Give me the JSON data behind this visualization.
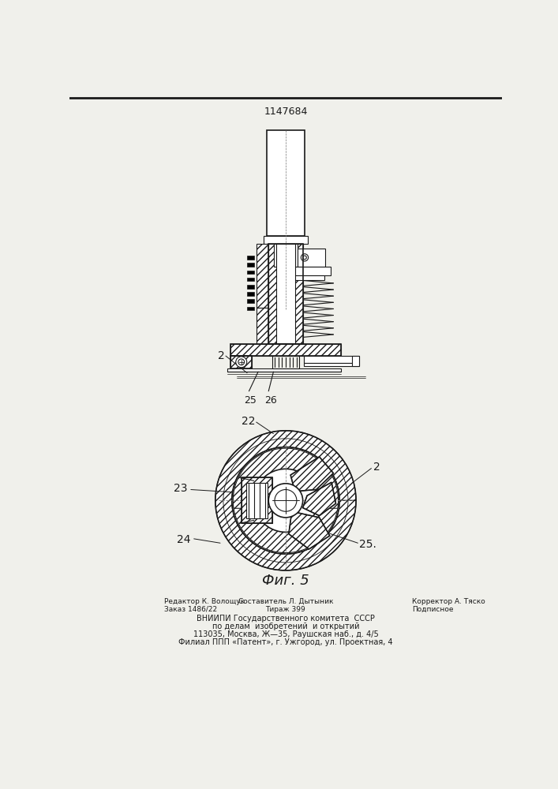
{
  "patent_number": "1147684",
  "fig_label": "Фиг. 5",
  "labels": {
    "2_top": "2",
    "25": "25",
    "26": "26",
    "22": "22",
    "23": "23",
    "24": "24",
    "2_bottom": "2",
    "25b": "25."
  },
  "footer_lines": [
    "Редактор К. Волощук",
    "Составитель Л. Дытыник",
    "Корректор А. Тяско",
    "Заказ 1486/22",
    "Тираж 399",
    "Подписное",
    "ВНИИПИ Государственного комитета  СССР",
    "по делам  изобретений  и открытий",
    "113035, Москва, Ж—35, Раушская наб., д. 4/5",
    "Филиал ППП «Патент», г. Ужгород, ул. Проектная, 4"
  ],
  "bg_color": "#f0f0eb",
  "line_color": "#1a1a1a"
}
